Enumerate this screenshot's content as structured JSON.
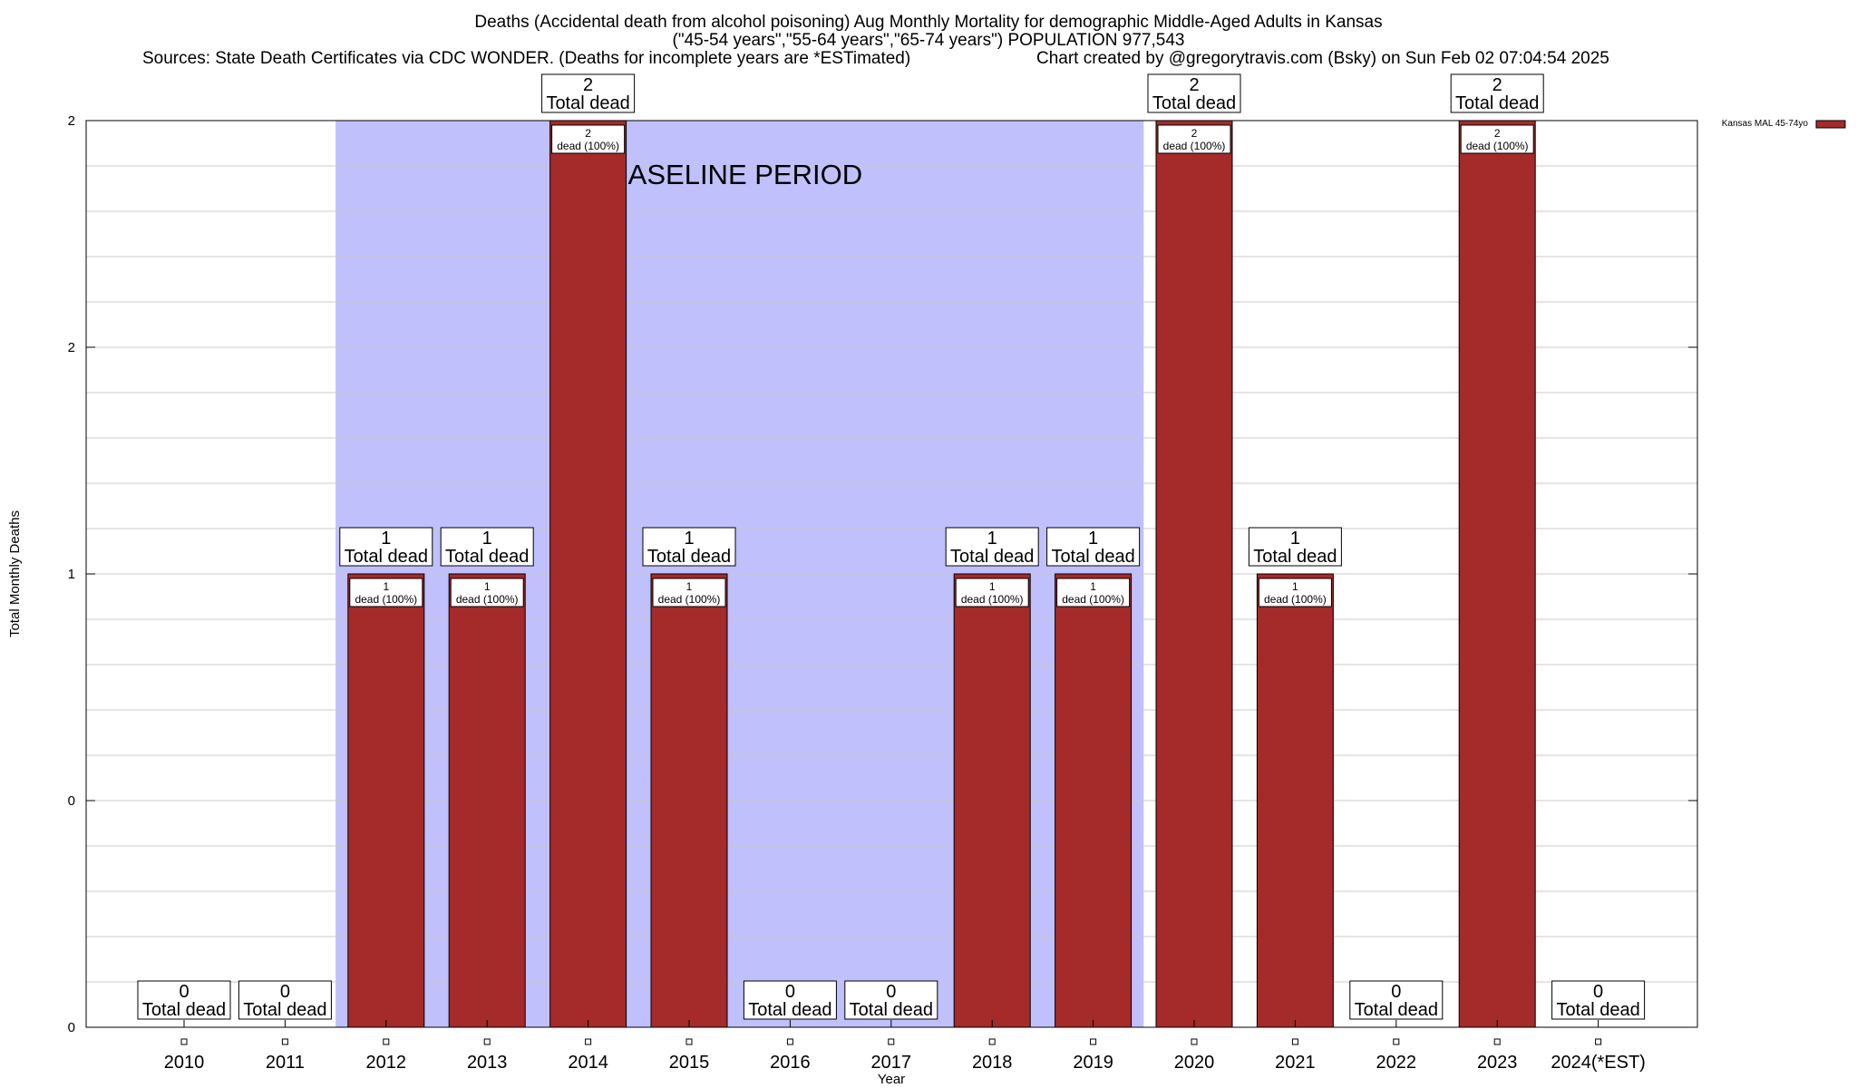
{
  "header": {
    "title_line1": "Deaths (Accidental death from alcohol poisoning) Aug Monthly Mortality for demographic Middle-Aged Adults in Kansas",
    "title_line2": "(\"45-54 years\",\"55-64 years\",\"65-74 years\") POPULATION 977,543",
    "sources": "Sources: State Death Certificates via CDC WONDER. (Deaths for incomplete years are *ESTimated)",
    "credit": "Chart created by @gregorytravis.com (Bsky) on Sun Feb 02 07:04:54 2025"
  },
  "chart_data": {
    "type": "bar",
    "title": "Deaths (Accidental death from alcohol poisoning) Aug Monthly Mortality for demographic Middle-Aged Adults in Kansas",
    "xlabel": "Year",
    "ylabel": "Total Monthly Deaths",
    "categories": [
      "2010",
      "2011",
      "2012",
      "2013",
      "2014",
      "2015",
      "2016",
      "2017",
      "2018",
      "2019",
      "2020",
      "2021",
      "2022",
      "2023",
      "2024(*EST)"
    ],
    "series": [
      {
        "name": "Kansas MAL 45-74yo",
        "values": [
          0,
          0,
          1,
          1,
          2,
          1,
          0,
          0,
          1,
          1,
          2,
          1,
          0,
          2,
          0
        ]
      }
    ],
    "ylim": [
      0,
      2
    ],
    "yticks": [
      {
        "value": 0,
        "label": "0"
      },
      {
        "value": 0.5,
        "label": "0"
      },
      {
        "value": 1,
        "label": "1"
      },
      {
        "value": 1.5,
        "label": "2"
      },
      {
        "value": 2,
        "label": "2"
      }
    ],
    "total_label_suffix": "Total dead",
    "bar_label_suffix": "dead (100%)",
    "baseline": {
      "label": "BASELINE PERIOD",
      "start": "2012",
      "end": "2019",
      "color": "#c0c0fc"
    },
    "bar_color": "#a52a2a",
    "grid": true,
    "legend_position": "top-right"
  }
}
